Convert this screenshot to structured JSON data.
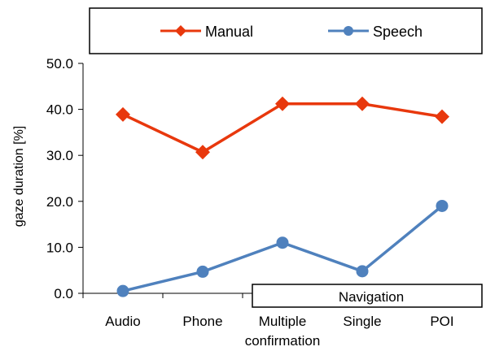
{
  "chart_data": {
    "type": "line",
    "categories": [
      "Audio",
      "Phone",
      "Multiple confirmation",
      "Single",
      "POI"
    ],
    "category_lines": [
      [
        "Audio"
      ],
      [
        "Phone"
      ],
      [
        "Multiple",
        "confirmation"
      ],
      [
        "Single"
      ],
      [
        "POI"
      ]
    ],
    "series": [
      {
        "name": "Manual",
        "values": [
          38.9,
          30.7,
          41.2,
          41.2,
          38.4
        ],
        "color": "#e8380d",
        "marker": "diamond"
      },
      {
        "name": "Speech",
        "values": [
          0.5,
          4.7,
          11.0,
          4.8,
          19.0
        ],
        "color": "#4f81bd",
        "marker": "circle"
      }
    ],
    "ylabel": "gaze duration [%]",
    "xlabel": "",
    "ylim": [
      0,
      50
    ],
    "yticks": [
      "0.0",
      "10.0",
      "20.0",
      "30.0",
      "40.0",
      "50.0"
    ],
    "group_label": "Navigation",
    "grid": false,
    "legend_position": "top"
  }
}
